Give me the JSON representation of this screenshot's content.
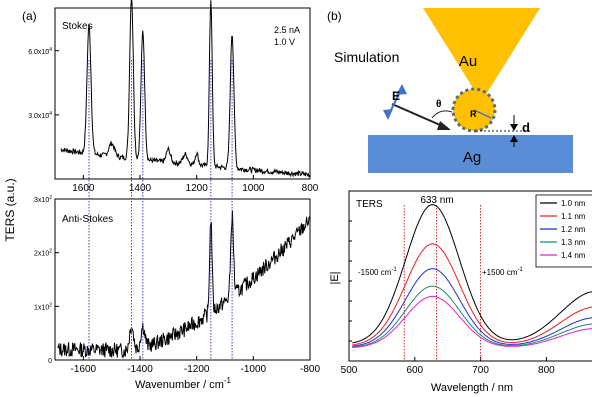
{
  "figure": {
    "panel_a": {
      "label": "(a)",
      "ylabel": "TERS (a.u.)",
      "xlabel_main": "Wavenumber / cm",
      "xlabel_sup": "-1"
    },
    "panel_b": {
      "label": "(b)"
    }
  },
  "schematic": {
    "title": "Simulation",
    "tip_label": "Au",
    "substrate_label": "Ag",
    "field_label": "E",
    "angle_label": "θ",
    "radius_label": "R",
    "gap_label": "d",
    "colors": {
      "tip": "#FFC000",
      "substrate": "#5B8DD6",
      "arrow_blue": "#4472C4"
    }
  },
  "chart_data": [
    {
      "type": "line",
      "panel": "stokes",
      "title": "Stokes",
      "annotations": [
        "2.5 nA",
        "1.0   V"
      ],
      "x_ticks": [
        "1600",
        "1400",
        "1200",
        "1000",
        "800"
      ],
      "y_ticks": [
        "6.0x10",
        "3.0x10"
      ],
      "y_tick_sup": "4",
      "xlim": [
        1700,
        800
      ],
      "ylim": [
        0,
        80000
      ],
      "peaks": [
        {
          "x": 1580,
          "y": 60000,
          "w": 10
        },
        {
          "x": 1430,
          "y": 76000,
          "w": 9
        },
        {
          "x": 1390,
          "y": 60000,
          "w": 9
        },
        {
          "x": 1150,
          "y": 78000,
          "w": 7
        },
        {
          "x": 1075,
          "y": 63000,
          "w": 9
        },
        {
          "x": 1500,
          "y": 6000,
          "w": 14
        },
        {
          "x": 1300,
          "y": 6000,
          "w": 10
        },
        {
          "x": 1240,
          "y": 4500,
          "w": 12
        },
        {
          "x": 1200,
          "y": 5500,
          "w": 8
        }
      ],
      "baseline": {
        "start": 14000,
        "end": 2000
      },
      "color": "#000000"
    },
    {
      "type": "line",
      "panel": "anti-stokes",
      "title": "Anti-Stokes",
      "x_ticks": [
        "-1600",
        "-1400",
        "-1200",
        "-1000",
        "-800"
      ],
      "y_ticks": [
        "3x10",
        "2x10",
        "1x10",
        "0"
      ],
      "y_tick_sup": "2",
      "xlim": [
        -1700,
        -800
      ],
      "ylim": [
        0,
        300
      ],
      "peaks": [
        {
          "x": -1430,
          "y": 45,
          "w": 10
        },
        {
          "x": -1390,
          "y": 40,
          "w": 10
        },
        {
          "x": -1150,
          "y": 175,
          "w": 6
        },
        {
          "x": -1075,
          "y": 150,
          "w": 7
        }
      ],
      "baseline": {
        "start": 20,
        "min": 18,
        "min_x": -1450,
        "end": 260
      },
      "color": "#000000"
    },
    {
      "type": "line",
      "panel": "ters-simulation",
      "title": "TERS",
      "xlabel": "Wavelength / nm",
      "ylabel": "|E|",
      "x_ticks": [
        500,
        600,
        700,
        800
      ],
      "xlim": [
        500,
        880
      ],
      "peak_label": "633 nm",
      "marker_labels": [
        "-1500 cm",
        "+1500 cm"
      ],
      "marker_label_sup": "-1",
      "markers": [
        584,
        633,
        700
      ],
      "series": [
        {
          "name": "1.0 nm",
          "color": "#000000",
          "main": 1.0,
          "tail": 0.38
        },
        {
          "name": "1.1 nm",
          "color": "#E8201F",
          "main": 0.73,
          "tail": 0.28
        },
        {
          "name": "1.2 nm",
          "color": "#1F2FD6",
          "main": 0.56,
          "tail": 0.21
        },
        {
          "name": "1.3 nm",
          "color": "#1E8A6E",
          "main": 0.44,
          "tail": 0.17
        },
        {
          "name": "1.4 nm",
          "color": "#E020D0",
          "main": 0.37,
          "tail": 0.14
        }
      ]
    }
  ]
}
